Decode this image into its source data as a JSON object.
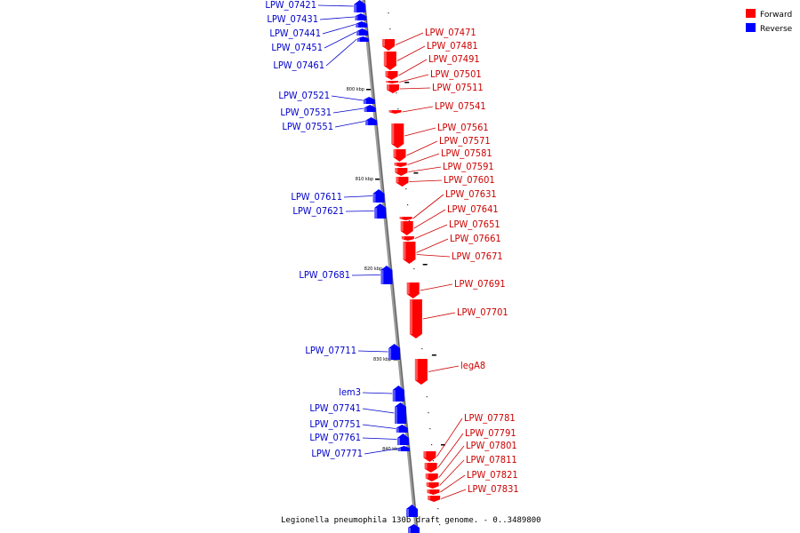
{
  "colors": {
    "forward": "#ff0000",
    "reverse": "#0000ff",
    "axis": "#777777"
  },
  "legend": [
    {
      "label": "Forward",
      "color": "#ff0000"
    },
    {
      "label": "Reverse",
      "color": "#0000ff"
    }
  ],
  "title": "Legionella pneumophila 130b draft genome. - 0..3489800",
  "kbp_marks": [
    "800 kbp",
    "810 kbp",
    "820 kbp",
    "830 kbp",
    "840 kbp"
  ],
  "reverse_genes": [
    "LPW_07421",
    "LPW_07431",
    "LPW_07441",
    "LPW_07451",
    "LPW_07461",
    "LPW_07521",
    "LPW_07531",
    "LPW_07551",
    "LPW_07611",
    "LPW_07621",
    "LPW_07681",
    "LPW_07711",
    "lem3",
    "LPW_07741",
    "LPW_07751",
    "LPW_07761",
    "LPW_07771"
  ],
  "forward_genes": [
    "LPW_07471",
    "LPW_07481",
    "LPW_07491",
    "LPW_07501",
    "LPW_07511",
    "LPW_07541",
    "LPW_07561",
    "LPW_07571",
    "LPW_07581",
    "LPW_07591",
    "LPW_07601",
    "LPW_07631",
    "LPW_07641",
    "LPW_07651",
    "LPW_07661",
    "LPW_07671",
    "LPW_07691",
    "LPW_07701",
    "legA8",
    "LPW_07781",
    "LPW_07791",
    "LPW_07801",
    "LPW_07811",
    "LPW_07821",
    "LPW_07831"
  ]
}
